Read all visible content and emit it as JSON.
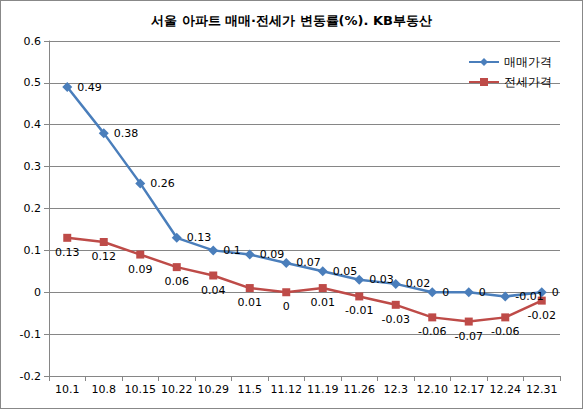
{
  "chart_data": {
    "type": "line",
    "title": "서울 아파트 매매·전세가 변동률(%). KB부동산",
    "categories": [
      "10.1",
      "10.8",
      "10.15",
      "10.22",
      "10.29",
      "11.5",
      "11.12",
      "11.19",
      "11.26",
      "12.3",
      "12.10",
      "12.17",
      "12.24",
      "12.31"
    ],
    "series": [
      {
        "name": "매매가격",
        "color": "#4a7ebb",
        "marker": "diamond",
        "values": [
          0.49,
          0.38,
          0.26,
          0.13,
          0.1,
          0.09,
          0.07,
          0.05,
          0.03,
          0.02,
          0,
          0,
          -0.01,
          0
        ]
      },
      {
        "name": "전세가격",
        "color": "#be4b48",
        "marker": "square",
        "values": [
          0.13,
          0.12,
          0.09,
          0.06,
          0.04,
          0.01,
          0,
          0.01,
          -0.01,
          -0.03,
          -0.06,
          -0.07,
          -0.06,
          -0.02
        ]
      }
    ],
    "ylim": [
      -0.2,
      0.6
    ],
    "yticks": [
      -0.2,
      -0.1,
      0,
      0.1,
      0.2,
      0.3,
      0.4,
      0.5,
      0.6
    ],
    "grid": true,
    "legend": "upper right",
    "data_labels": true
  }
}
